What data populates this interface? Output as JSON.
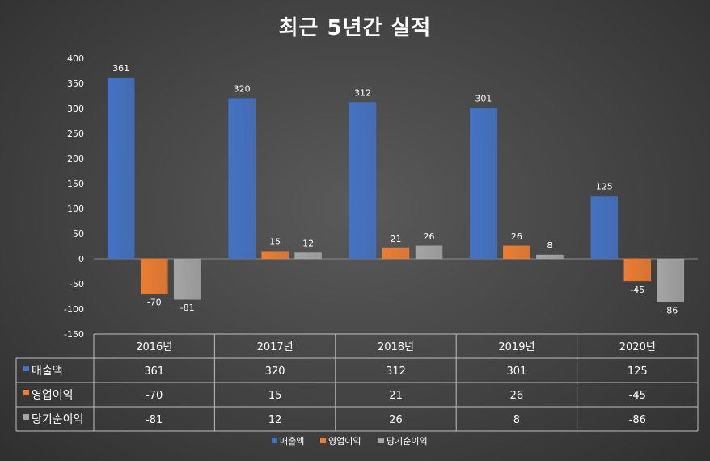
{
  "chart_data": {
    "type": "bar",
    "title": "최근 5년간 실적",
    "categories": [
      "2016년",
      "2017년",
      "2018년",
      "2019년",
      "2020년"
    ],
    "series": [
      {
        "name": "매출액",
        "values": [
          361,
          320,
          312,
          301,
          125
        ],
        "color": "#4472c4"
      },
      {
        "name": "영업이익",
        "values": [
          -70,
          15,
          21,
          26,
          -45
        ],
        "color": "#ed7d31"
      },
      {
        "name": "당기순이익",
        "values": [
          -81,
          12,
          26,
          8,
          -86
        ],
        "color": "#a5a5a5"
      }
    ],
    "ylim": [
      -150,
      400
    ],
    "yticks": [
      "-150",
      "-100",
      "-50",
      "0",
      "50",
      "100",
      "150",
      "200",
      "250",
      "300",
      "350",
      "400"
    ],
    "data_labels": true,
    "data_table": true,
    "legend_position": "bottom",
    "grid": false
  }
}
